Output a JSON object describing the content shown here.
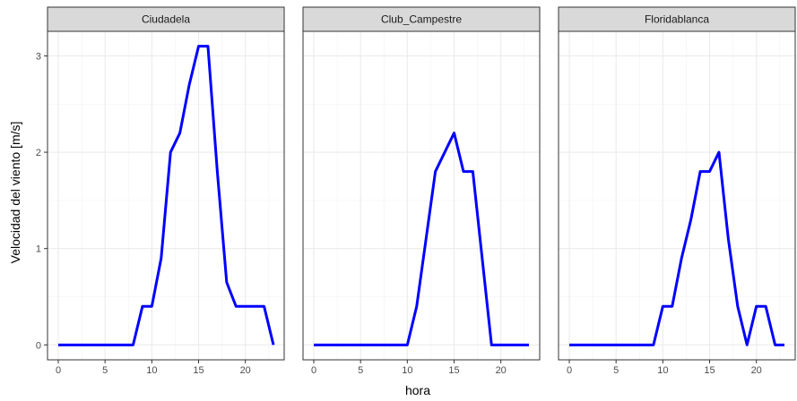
{
  "chart_data": {
    "type": "line",
    "xlabel": "hora",
    "ylabel": "Velocidad del viento [m/s]",
    "xlim": [
      -1.15,
      24.15
    ],
    "ylim": [
      -0.155,
      3.255
    ],
    "x_ticks": [
      0,
      5,
      10,
      15,
      20
    ],
    "x_tick_labels": [
      "0",
      "5",
      "10",
      "15",
      "20"
    ],
    "y_ticks": [
      0,
      1,
      2,
      3
    ],
    "y_tick_labels": [
      "0",
      "1",
      "2",
      "3"
    ],
    "grid": true,
    "line_color": "#0000ff",
    "facets": [
      {
        "name": "Ciudadela",
        "x": [
          0,
          1,
          2,
          3,
          4,
          5,
          6,
          7,
          8,
          9,
          10,
          11,
          12,
          13,
          14,
          15,
          16,
          17,
          18,
          19,
          20,
          21,
          22,
          23
        ],
        "y": [
          0,
          0,
          0,
          0,
          0,
          0,
          0,
          0,
          0,
          0.4,
          0.4,
          0.9,
          2.0,
          2.2,
          2.7,
          3.1,
          3.1,
          1.8,
          0.65,
          0.4,
          0.4,
          0.4,
          0.4,
          0
        ]
      },
      {
        "name": "Club_Campestre",
        "x": [
          0,
          1,
          2,
          3,
          4,
          5,
          6,
          7,
          8,
          9,
          10,
          11,
          12,
          13,
          14,
          15,
          16,
          17,
          18,
          19,
          20,
          21,
          22,
          23
        ],
        "y": [
          0,
          0,
          0,
          0,
          0,
          0,
          0,
          0,
          0,
          0,
          0,
          0.4,
          1.1,
          1.8,
          2.0,
          2.2,
          1.8,
          1.8,
          0.9,
          0,
          0,
          0,
          0,
          0
        ]
      },
      {
        "name": "Floridablanca",
        "x": [
          0,
          1,
          2,
          3,
          4,
          5,
          6,
          7,
          8,
          9,
          10,
          11,
          12,
          13,
          14,
          15,
          16,
          17,
          18,
          19,
          20,
          21,
          22,
          23
        ],
        "y": [
          0,
          0,
          0,
          0,
          0,
          0,
          0,
          0,
          0,
          0,
          0.4,
          0.4,
          0.9,
          1.3,
          1.8,
          1.8,
          2.0,
          1.1,
          0.4,
          0,
          0.4,
          0.4,
          0,
          0
        ]
      }
    ]
  }
}
